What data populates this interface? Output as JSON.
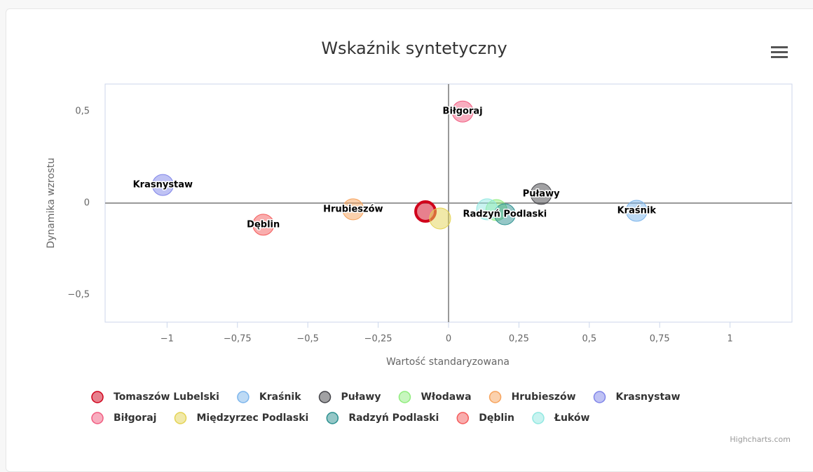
{
  "chart_data": {
    "type": "bubble",
    "title": "Wskaźnik syntetyczny",
    "x_label": "Wartość standaryzowana",
    "y_label": "Dynamika wzrostu",
    "credit": "Highcharts.com",
    "xlim": [
      -1.22,
      1.22
    ],
    "ylim": [
      -0.65,
      0.65
    ],
    "xticks": [
      {
        "value": -1,
        "label": "−1"
      },
      {
        "value": -0.75,
        "label": "−0,75"
      },
      {
        "value": -0.5,
        "label": "−0,5"
      },
      {
        "value": -0.25,
        "label": "−0,25"
      },
      0,
      {
        "value": 0.25,
        "label": "0,25"
      },
      {
        "value": 0.5,
        "label": "0,5"
      },
      {
        "value": 0.75,
        "label": "0,75"
      },
      1
    ],
    "yticks": [
      {
        "value": 0.5,
        "label": "0,5"
      },
      0,
      {
        "value": -0.5,
        "label": "−0,5"
      }
    ],
    "zero_lines": true,
    "series": [
      {
        "name": "Tomaszów Lubelski",
        "color": "#d0021b",
        "x": [
          -0.082
        ],
        "values": [
          -0.046
        ],
        "selected": true,
        "data_label": false
      },
      {
        "name": "Kraśnik",
        "color": "#7cb5ec",
        "x": [
          0.668
        ],
        "values": [
          -0.042
        ],
        "data_label": true
      },
      {
        "name": "Puławy",
        "color": "#434348",
        "x": [
          0.329
        ],
        "values": [
          0.05
        ],
        "data_label": true
      },
      {
        "name": "Włodawa",
        "color": "#90ed7d",
        "x": [
          0.17
        ],
        "values": [
          -0.038
        ],
        "data_label": false
      },
      {
        "name": "Hrubieszów",
        "color": "#f7a35c",
        "x": [
          -0.339
        ],
        "values": [
          -0.034
        ],
        "data_label": true
      },
      {
        "name": "Krasnystaw",
        "color": "#8085e9",
        "x": [
          -1.015
        ],
        "values": [
          0.099
        ],
        "data_label": true
      },
      {
        "name": "Biłgoraj",
        "color": "#f15c80",
        "x": [
          0.05
        ],
        "values": [
          0.5
        ],
        "data_label": true
      },
      {
        "name": "Międzyrzec Podlaski",
        "color": "#e4d354",
        "x": [
          -0.03
        ],
        "values": [
          -0.084
        ],
        "data_label": false
      },
      {
        "name": "Radzyń Podlaski",
        "color": "#2b908f",
        "x": [
          0.2
        ],
        "values": [
          -0.061
        ],
        "data_label": true
      },
      {
        "name": "Dęblin",
        "color": "#f45b5b",
        "x": [
          -0.658
        ],
        "values": [
          -0.118
        ],
        "data_label": true
      },
      {
        "name": "Łuków",
        "color": "#91e8e1",
        "x": [
          0.137
        ],
        "values": [
          -0.034
        ],
        "data_label": false
      }
    ]
  }
}
